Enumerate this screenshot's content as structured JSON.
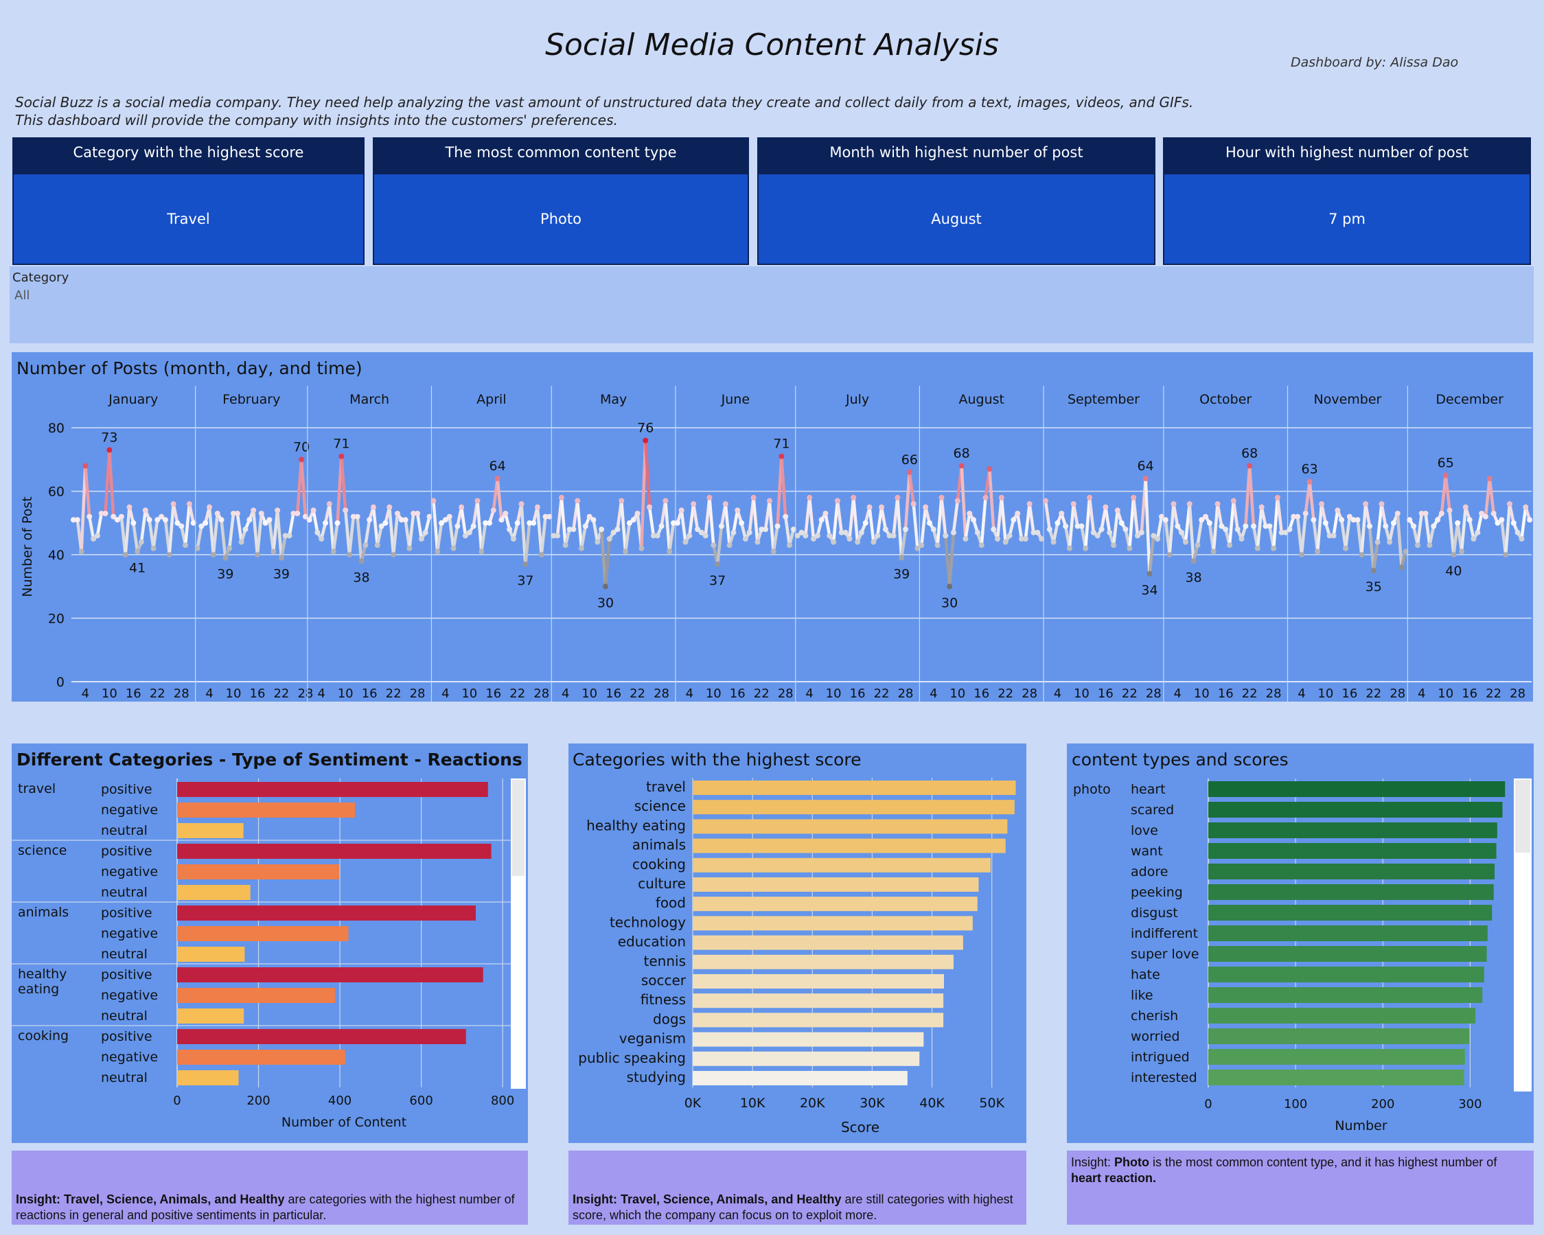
{
  "header": {
    "title": "Social Media Content Analysis",
    "byline": "Dashboard by: Alissa Dao",
    "description_line1": "Social Buzz is a social media company.  They need help analyzing the vast amount of unstructured data they create and collect daily from a text, images, videos, and GIFs.",
    "description_line2": "This dashboard will provide the company with insights into the customers' preferences."
  },
  "kpis": [
    {
      "label": "Category with the highest score",
      "value": "Travel"
    },
    {
      "label": "The most common content type",
      "value": "Photo"
    },
    {
      "label": "Month with highest number of post",
      "value": "August"
    },
    {
      "label": "Hour with highest number of post",
      "value": "7 pm"
    }
  ],
  "filter": {
    "label": "Category",
    "value": "All"
  },
  "colors": {
    "page_bg": "#cbdaf7",
    "panel_bg": "#6495ea",
    "kpi_head": "#0b2258",
    "kpi_body": "#1650c8",
    "insight_bg": "#a399f0",
    "positive": "#c02040",
    "negative": "#f07e48",
    "neutral": "#f6bd55",
    "green_dark": "#146b36",
    "green_light": "#56a15a"
  },
  "posts_panel": {
    "title": "Number of Posts (month, day, and time)"
  },
  "sentiment_panel": {
    "title": "Different Categories - Type of Sentiment - Reactions"
  },
  "score_panel": {
    "title": "Categories with the highest score"
  },
  "content_panel": {
    "title": "content types and scores"
  },
  "insights": {
    "sentiment": {
      "lead": "Insight: Travel, Science, Animals, and Healthy",
      "rest": " are categories with the highest number of reactions in general and positive sentiments in particular."
    },
    "score": {
      "lead": "Insight: Travel, Science, Animals, and Healthy",
      "rest": " are still categories with highest score, which the company can focus on to exploit more."
    },
    "content": {
      "pre": "Insight: ",
      "bold1": "Photo",
      "mid": " is the most common content type, and it has highest number of ",
      "bold2": "heart reaction."
    }
  },
  "chart_data": [
    {
      "type": "line",
      "ylabel": "Number of Post",
      "ylim": [
        0,
        85
      ],
      "yticks": [
        0,
        20,
        40,
        60,
        80
      ],
      "xticks": [
        4,
        10,
        16,
        22,
        28
      ],
      "grid": true,
      "series": [
        {
          "month": "January",
          "days": 31,
          "peaks": [
            {
              "day": 10,
              "value": 73,
              "label": "73"
            },
            {
              "day": 4,
              "value": 68,
              "label": ""
            },
            {
              "day": 17,
              "value": 41,
              "label": "41"
            }
          ]
        },
        {
          "month": "February",
          "days": 28,
          "peaks": [
            {
              "day": 27,
              "value": 70,
              "label": "70"
            },
            {
              "day": 8,
              "value": 39,
              "label": "39"
            },
            {
              "day": 22,
              "value": 39,
              "label": "39"
            }
          ]
        },
        {
          "month": "March",
          "days": 31,
          "peaks": [
            {
              "day": 9,
              "value": 71,
              "label": "71"
            },
            {
              "day": 14,
              "value": 38,
              "label": "38"
            }
          ]
        },
        {
          "month": "April",
          "days": 30,
          "peaks": [
            {
              "day": 17,
              "value": 64,
              "label": "64"
            },
            {
              "day": 24,
              "value": 37,
              "label": "37"
            }
          ]
        },
        {
          "month": "May",
          "days": 31,
          "peaks": [
            {
              "day": 24,
              "value": 76,
              "label": "76"
            },
            {
              "day": 14,
              "value": 30,
              "label": "30"
            }
          ]
        },
        {
          "month": "June",
          "days": 30,
          "peaks": [
            {
              "day": 27,
              "value": 71,
              "label": "71"
            },
            {
              "day": 11,
              "value": 37,
              "label": "37"
            }
          ]
        },
        {
          "month": "July",
          "days": 31,
          "peaks": [
            {
              "day": 29,
              "value": 66,
              "label": "66"
            },
            {
              "day": 27,
              "value": 39,
              "label": "39"
            }
          ]
        },
        {
          "month": "August",
          "days": 31,
          "peaks": [
            {
              "day": 11,
              "value": 68,
              "label": "68"
            },
            {
              "day": 8,
              "value": 30,
              "label": "30"
            },
            {
              "day": 18,
              "value": 67,
              "label": ""
            }
          ]
        },
        {
          "month": "September",
          "days": 30,
          "peaks": [
            {
              "day": 26,
              "value": 64,
              "label": "64"
            },
            {
              "day": 27,
              "value": 34,
              "label": "34"
            }
          ]
        },
        {
          "month": "October",
          "days": 31,
          "peaks": [
            {
              "day": 22,
              "value": 68,
              "label": "68"
            },
            {
              "day": 8,
              "value": 38,
              "label": "38"
            }
          ]
        },
        {
          "month": "November",
          "days": 30,
          "peaks": [
            {
              "day": 6,
              "value": 63,
              "label": "63"
            },
            {
              "day": 22,
              "value": 35,
              "label": "35"
            },
            {
              "day": 29,
              "value": 36,
              "label": ""
            }
          ]
        },
        {
          "month": "December",
          "days": 31,
          "peaks": [
            {
              "day": 10,
              "value": 65,
              "label": "65"
            },
            {
              "day": 12,
              "value": 40,
              "label": "40"
            },
            {
              "day": 21,
              "value": 64,
              "label": ""
            }
          ]
        }
      ]
    },
    {
      "type": "bar",
      "title": "Different Categories - Type of Sentiment - Reactions",
      "xlabel": "Number of Content",
      "xlim": [
        0,
        820
      ],
      "xticks": [
        0,
        200,
        400,
        600,
        800
      ],
      "groups": [
        {
          "category": "travel",
          "rows": [
            {
              "sentiment": "positive",
              "value": 764
            },
            {
              "sentiment": "negative",
              "value": 437
            },
            {
              "sentiment": "neutral",
              "value": 163
            }
          ]
        },
        {
          "category": "science",
          "rows": [
            {
              "sentiment": "positive",
              "value": 772
            },
            {
              "sentiment": "negative",
              "value": 399
            },
            {
              "sentiment": "neutral",
              "value": 180
            }
          ]
        },
        {
          "category": "animals",
          "rows": [
            {
              "sentiment": "positive",
              "value": 734
            },
            {
              "sentiment": "negative",
              "value": 421
            },
            {
              "sentiment": "neutral",
              "value": 166
            }
          ]
        },
        {
          "category": "healthy eating",
          "rows": [
            {
              "sentiment": "positive",
              "value": 752
            },
            {
              "sentiment": "negative",
              "value": 388
            },
            {
              "sentiment": "neutral",
              "value": 164
            }
          ]
        },
        {
          "category": "cooking",
          "rows": [
            {
              "sentiment": "positive",
              "value": 710
            },
            {
              "sentiment": "negative",
              "value": 413
            },
            {
              "sentiment": "neutral",
              "value": 151
            }
          ]
        }
      ]
    },
    {
      "type": "bar",
      "title": "Categories with the highest score",
      "xlabel": "Score",
      "xlim": [
        0,
        56000
      ],
      "xticks": [
        0,
        10000,
        20000,
        30000,
        40000,
        50000
      ],
      "xticklabels": [
        "0K",
        "10K",
        "20K",
        "30K",
        "40K",
        "50K"
      ],
      "categories": [
        "travel",
        "science",
        "healthy eating",
        "animals",
        "cooking",
        "culture",
        "food",
        "technology",
        "education",
        "tennis",
        "soccer",
        "fitness",
        "dogs",
        "veganism",
        "public speaking",
        "studying"
      ],
      "values": [
        54000,
        53800,
        52600,
        52300,
        49800,
        47800,
        47600,
        46800,
        45200,
        43600,
        42000,
        41900,
        41900,
        38600,
        37900,
        35900
      ]
    },
    {
      "type": "bar",
      "title": "content types and scores",
      "xlabel": "Number",
      "xlim": [
        0,
        350
      ],
      "xticks": [
        0,
        100,
        200,
        300
      ],
      "group": "photo",
      "categories": [
        "heart",
        "scared",
        "love",
        "want",
        "adore",
        "peeking",
        "disgust",
        "indifferent",
        "super love",
        "hate",
        "like",
        "cherish",
        "worried",
        "intrigued",
        "interested"
      ],
      "values": [
        340,
        337,
        331,
        330,
        328,
        327,
        325,
        320,
        319,
        316,
        314,
        306,
        299,
        294,
        293
      ]
    }
  ]
}
